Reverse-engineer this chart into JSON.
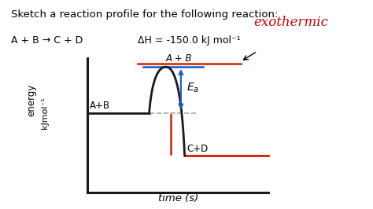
{
  "bg_color": "#ffffff",
  "title_text": "Sketch a reaction profile for the following reaction:",
  "reaction_text": "A + B → C + D",
  "dH_text": "ΔH = -150.0 kJ mol⁻¹",
  "exothermic_text": "exothermic",
  "ylabel_line1": "energy",
  "ylabel_line2": "kJmol⁻¹",
  "xlabel_text": "time (s)",
  "reactant_label": "A+B",
  "reactant_label2": "A + B",
  "product_label": "C+D",
  "activation_label": "E",
  "activation_label_sub": "a",
  "curve_color": "#1a1a1a",
  "reactant_line_color": "#1a1a1a",
  "product_line_color": "#cc2200",
  "top_line_color": "#1a5acc",
  "arrow_color": "#1a5acc",
  "dH_underline_color": "#cc2200",
  "red_vert_color": "#cc2200",
  "axis_color": "#1a1a1a",
  "dashed_color": "#aaaaaa",
  "title_fontsize": 9.5,
  "label_fontsize": 9,
  "small_fontsize": 8.5
}
